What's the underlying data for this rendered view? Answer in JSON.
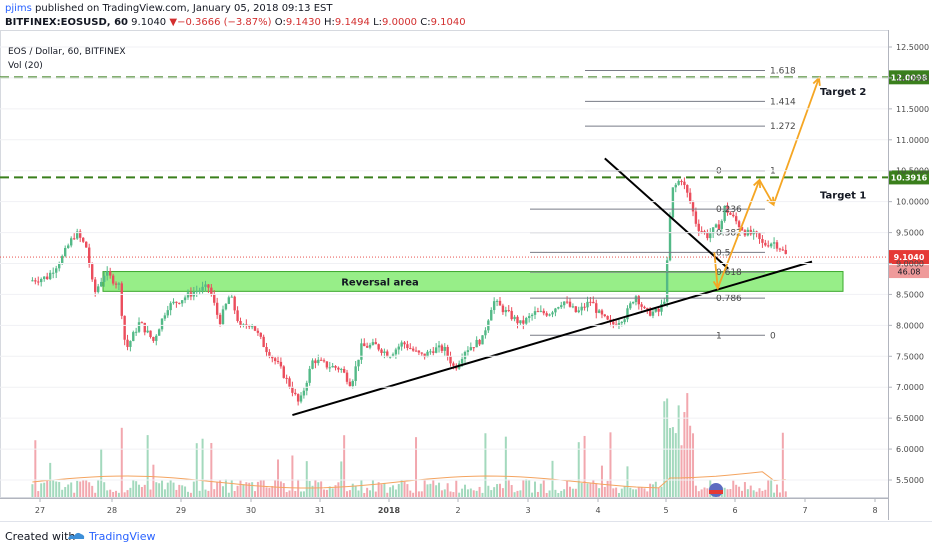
{
  "header": {
    "author": "pjims",
    "published": "published on TradingView.com, January 05, 2018 09:13 EST",
    "symbol": "BITFINEX:EOSUSD, 60",
    "last": "9.1040",
    "change_arrow": "▼",
    "change": "−0.3666 (−3.87%)",
    "o_label": "O:",
    "o_value": "9.1430",
    "h_label": "H:",
    "h_value": "9.1494",
    "l_label": "L:",
    "l_value": "9.0000",
    "c_label": "C:",
    "c_value": "9.1040"
  },
  "legend": {
    "line1": "EOS / Dollar, 60, BITFINEX",
    "line2": "Vol (20)"
  },
  "footer": {
    "created_with": "Created with",
    "brand": "TradingView"
  },
  "colors": {
    "up": "#53b987",
    "down": "#eb4d5c",
    "vol_up": "#a3d9bd",
    "vol_down": "#f2a7ae",
    "target_line": "#3a7f1c",
    "reversal_fill": "#7dea6a",
    "arrow": "#f5a623",
    "current_price_bg": "#e53935",
    "target_price_bg": "#3a7f1c"
  },
  "chart_data": {
    "type": "candlestick",
    "x_ticks": [
      "27",
      "28",
      "29",
      "30",
      "31",
      "2018",
      "2",
      "3",
      "4",
      "5",
      "6",
      "7",
      "8"
    ],
    "y_ticks": [
      "12.5000",
      "12.0000",
      "11.5000",
      "11.0000",
      "10.5000",
      "10.0000",
      "9.5000",
      "9.0000",
      "8.5000",
      "8.0000",
      "7.5000",
      "7.0000",
      "6.5000",
      "6.0000",
      "5.5000"
    ],
    "ylim": [
      5.2,
      12.6
    ],
    "current_price": "9.1040",
    "volume_value": "46.08",
    "targets": [
      {
        "label": "Target 1",
        "price": "10.3916",
        "value": 10.3916
      },
      {
        "label": "Target 2",
        "price": "12.0098",
        "value": 12.0098
      }
    ],
    "reversal_area": {
      "label": "Reversal area",
      "low": 8.55,
      "high": 8.87
    },
    "fib_levels_upper": [
      {
        "label": "1.618",
        "value": 12.12
      },
      {
        "label": "1.414",
        "value": 11.62
      },
      {
        "label": "1.272",
        "value": 11.22
      },
      {
        "label": "1",
        "value": 10.5
      }
    ],
    "fib_levels_retrace": [
      {
        "label": "0",
        "value": 10.5
      },
      {
        "label": "0.236",
        "value": 9.88
      },
      {
        "label": "0.382",
        "value": 9.5
      },
      {
        "label": "0.5",
        "value": 9.18
      },
      {
        "label": "0.618",
        "value": 8.86
      },
      {
        "label": "0.786",
        "value": 8.44
      },
      {
        "label": "1",
        "value": 7.84
      }
    ],
    "fib_zero_right": "0",
    "trendlines": [
      {
        "name": "ascending support",
        "from": [
          30.6,
          6.55
        ],
        "to": [
          7.1,
          9.03
        ]
      },
      {
        "name": "descending resistance",
        "from": [
          4.1,
          10.7
        ],
        "to": [
          5.9,
          8.92
        ]
      }
    ],
    "projected_path": [
      [
        5.7,
        9.18
      ],
      [
        5.75,
        8.6
      ],
      [
        6.35,
        10.35
      ],
      [
        6.55,
        9.95
      ],
      [
        7.2,
        12.0
      ]
    ],
    "ohlc_anchors": [
      [
        26.85,
        8.72
      ],
      [
        27.1,
        8.78
      ],
      [
        27.3,
        9.08
      ],
      [
        27.42,
        9.35
      ],
      [
        27.5,
        9.5
      ],
      [
        27.65,
        9.25
      ],
      [
        27.75,
        8.5
      ],
      [
        27.9,
        8.85
      ],
      [
        28.1,
        8.65
      ],
      [
        28.2,
        7.6
      ],
      [
        28.4,
        8.05
      ],
      [
        28.6,
        7.75
      ],
      [
        28.8,
        8.3
      ],
      [
        29.0,
        8.42
      ],
      [
        29.2,
        8.55
      ],
      [
        29.4,
        8.62
      ],
      [
        29.55,
        8.05
      ],
      [
        29.7,
        8.5
      ],
      [
        29.85,
        7.95
      ],
      [
        30.0,
        8.05
      ],
      [
        30.2,
        7.65
      ],
      [
        30.4,
        7.35
      ],
      [
        30.6,
        6.95
      ],
      [
        30.7,
        6.72
      ],
      [
        30.9,
        7.45
      ],
      [
        31.1,
        7.35
      ],
      [
        31.3,
        7.3
      ],
      [
        31.45,
        7.05
      ],
      [
        31.6,
        7.65
      ],
      [
        31.8,
        7.68
      ],
      [
        32.0,
        7.52
      ],
      [
        32.2,
        7.72
      ],
      [
        32.4,
        7.55
      ],
      [
        32.5,
        7.5
      ],
      [
        32.65,
        7.62
      ],
      [
        32.8,
        7.62
      ],
      [
        32.95,
        7.3
      ],
      [
        33.1,
        7.6
      ],
      [
        33.35,
        7.78
      ],
      [
        33.5,
        8.4
      ],
      [
        33.7,
        8.2
      ],
      [
        33.9,
        8.02
      ],
      [
        34.1,
        8.2
      ],
      [
        34.3,
        8.2
      ],
      [
        34.5,
        8.4
      ],
      [
        34.7,
        8.2
      ],
      [
        34.9,
        8.4
      ],
      [
        35.0,
        8.2
      ],
      [
        35.2,
        8.0
      ],
      [
        35.4,
        8.15
      ],
      [
        35.55,
        8.5
      ],
      [
        35.7,
        8.2
      ],
      [
        35.9,
        8.22
      ],
      [
        36.0,
        8.5
      ],
      [
        36.03,
        9.4
      ],
      [
        36.1,
        10.2
      ],
      [
        36.22,
        10.38
      ],
      [
        36.35,
        10.0
      ],
      [
        36.45,
        9.6
      ],
      [
        36.6,
        9.45
      ],
      [
        36.8,
        9.65
      ],
      [
        36.85,
        9.9
      ],
      [
        37.0,
        9.7
      ],
      [
        37.15,
        9.5
      ],
      [
        37.3,
        9.45
      ],
      [
        37.4,
        9.3
      ],
      [
        37.55,
        9.35
      ],
      [
        37.65,
        9.25
      ],
      [
        37.75,
        9.1
      ]
    ]
  }
}
